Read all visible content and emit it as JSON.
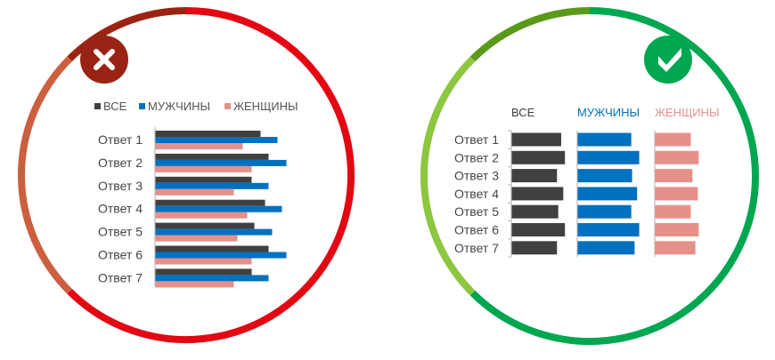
{
  "colors": {
    "all": "#404040",
    "men": "#0070c0",
    "women": "#e6908a",
    "bad_ring": "#e30613",
    "bad_ring_dark": "#9a2414",
    "bad_ring_orange": "#cb5f3e",
    "good_ring": "#00a650",
    "good_ring_dark": "#5a9a1a",
    "good_ring_light": "#8dc63f"
  },
  "icons": {
    "bad": "x-mark-icon",
    "good": "check-mark-icon"
  },
  "chart_data": [
    {
      "type": "bar",
      "orientation": "horizontal",
      "variant": "grouped",
      "legend_position": "top",
      "categories": [
        "Ответ 1",
        "Ответ 2",
        "Ответ 3",
        "Ответ 4",
        "Ответ 5",
        "Ответ 6",
        "Ответ 7"
      ],
      "series": [
        {
          "name": "ВСЕ",
          "values": [
            118,
            127,
            108,
            123,
            111,
            127,
            108
          ]
        },
        {
          "name": "МУЖЧИНЫ",
          "values": [
            137,
            147,
            127,
            142,
            131,
            147,
            127
          ]
        },
        {
          "name": "ЖЕНЩИНЫ",
          "values": [
            98,
            108,
            88,
            103,
            92,
            108,
            88
          ]
        }
      ],
      "xlim": [
        0,
        150
      ],
      "grid": false
    },
    {
      "type": "bar",
      "orientation": "horizontal",
      "variant": "small-multiples",
      "legend_position": "column headers",
      "categories": [
        "Ответ 1",
        "Ответ 2",
        "Ответ 3",
        "Ответ 4",
        "Ответ 5",
        "Ответ 6",
        "Ответ 7"
      ],
      "series": [
        {
          "name": "ВСЕ",
          "values": [
            118,
            127,
            108,
            123,
            111,
            127,
            108
          ]
        },
        {
          "name": "МУЖЧИНЫ",
          "values": [
            128,
            147,
            130,
            142,
            128,
            147,
            136
          ]
        },
        {
          "name": "ЖЕНЩИНЫ",
          "values": [
            85,
            104,
            89,
            102,
            85,
            104,
            96
          ]
        }
      ],
      "xlim": [
        0,
        150
      ],
      "grid": false
    }
  ]
}
